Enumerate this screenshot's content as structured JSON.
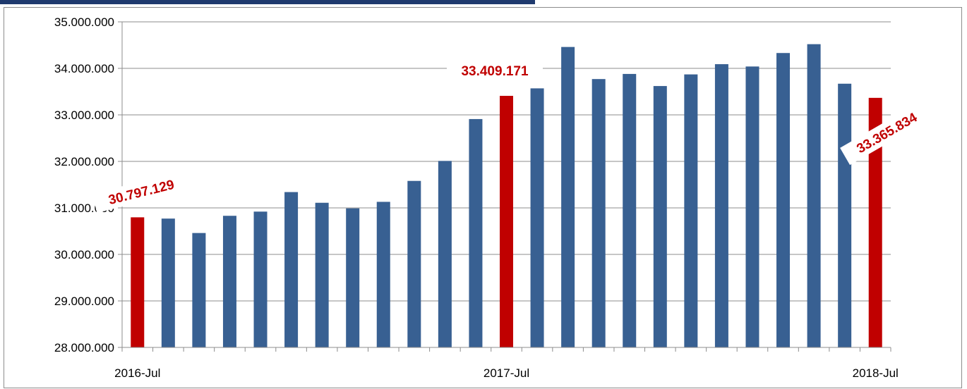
{
  "chart_data": {
    "type": "bar",
    "title": "",
    "xlabel": "",
    "ylabel": "",
    "ylim": [
      28000000,
      35000000
    ],
    "ytick_values": [
      28000000,
      29000000,
      30000000,
      31000000,
      32000000,
      33000000,
      34000000,
      35000000
    ],
    "ytick_labels": [
      "28.000.000",
      "29.000.000",
      "30.000.000",
      "31.000.000",
      "32.000.000",
      "33.000.000",
      "34.000.000",
      "35.000.000"
    ],
    "x_labels": [
      {
        "index": 0,
        "label": "2016-Jul"
      },
      {
        "index": 12,
        "label": "2017-Jul"
      },
      {
        "index": 24,
        "label": "2018-Jul"
      }
    ],
    "grid": true,
    "legend": "none",
    "colors": {
      "default": "#386092",
      "highlight": "#c00000"
    },
    "values": [
      30797129,
      30770000,
      30460000,
      30830000,
      30920000,
      31340000,
      31110000,
      30990000,
      31130000,
      31580000,
      32010000,
      32910000,
      33409171,
      33570000,
      34460000,
      33770000,
      33880000,
      33620000,
      33870000,
      34090000,
      34040000,
      34330000,
      34520000,
      33670000,
      33365834
    ],
    "highlight_indices": [
      0,
      12,
      24
    ],
    "data_labels": [
      {
        "index": 0,
        "text": "30.797.129",
        "rotate": -14
      },
      {
        "index": 12,
        "text": "33.409.171",
        "rotate": 0
      },
      {
        "index": 24,
        "text": "33.365.834",
        "rotate": -30
      }
    ]
  }
}
